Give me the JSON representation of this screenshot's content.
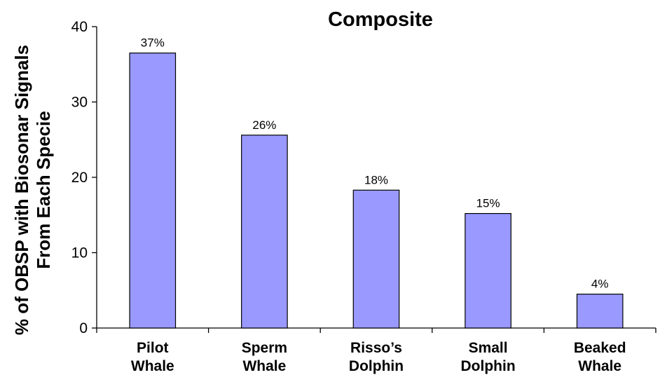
{
  "chart_data": {
    "type": "bar",
    "title": "Composite",
    "ylabel_lines": [
      "% of OBSP with Biosonar Signals",
      "From Each Specie"
    ],
    "xlabel": "",
    "ylim": [
      0,
      40
    ],
    "yticks": [
      "0",
      "10",
      "20",
      "30",
      "40"
    ],
    "categories": [
      [
        "Pilot",
        "Whale"
      ],
      [
        "Sperm",
        "Whale"
      ],
      [
        "Risso’s",
        "Dolphin"
      ],
      [
        "Small",
        "Dolphin"
      ],
      [
        "Beaked",
        "Whale"
      ]
    ],
    "values": [
      36.5,
      25.6,
      18.3,
      15.2,
      4.5
    ],
    "data_labels": [
      "37%",
      "26%",
      "18%",
      "15%",
      "4%"
    ],
    "bar_color": "#9999ff",
    "grid": false,
    "legend": "none"
  }
}
